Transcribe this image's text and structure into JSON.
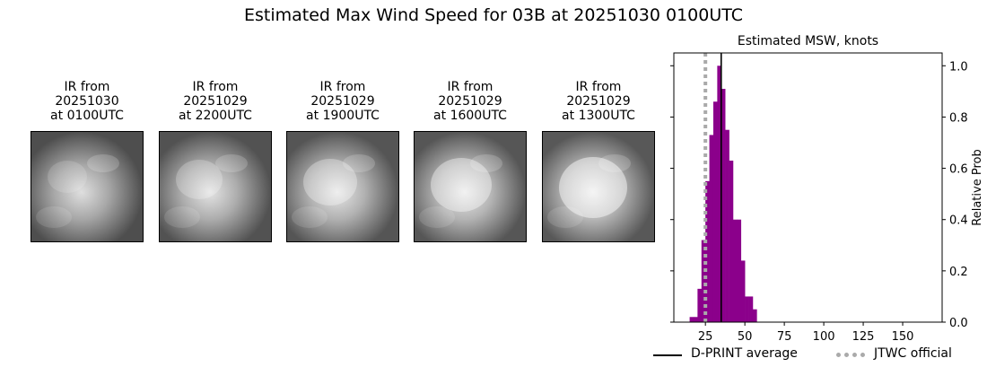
{
  "figure": {
    "title": "Estimated Max Wind Speed for 03B at 20251030 0100UTC"
  },
  "panels": [
    {
      "line1": "IR from",
      "line2": "20251030",
      "line3": "at 0100UTC",
      "brightness": 0.45
    },
    {
      "line1": "IR from",
      "line2": "20251029",
      "line3": "at 2200UTC",
      "brightness": 0.55
    },
    {
      "line1": "IR from",
      "line2": "20251029",
      "line3": "at 1900UTC",
      "brightness": 0.62
    },
    {
      "line1": "IR from",
      "line2": "20251029",
      "line3": "at 1600UTC",
      "brightness": 0.66
    },
    {
      "line1": "IR from",
      "line2": "20251029",
      "line3": "at 1300UTC",
      "brightness": 0.7
    }
  ],
  "chart_data": {
    "type": "bar",
    "title": "Estimated MSW, knots",
    "xlabel": "",
    "ylabel": "Relative Prob",
    "xlim": [
      5,
      175
    ],
    "ylim": [
      0,
      1.05
    ],
    "xticks": [
      25,
      50,
      75,
      100,
      125,
      150
    ],
    "yticks": [
      0.0,
      0.2,
      0.4,
      0.6,
      0.8,
      1.0
    ],
    "ytick_labels": [
      "0.0",
      "0.2",
      "0.4",
      "0.6",
      "0.8",
      "1.0"
    ],
    "grid": false,
    "legend_position": "below",
    "bar_color": "#8b008b",
    "bin_width": 2.5,
    "bins": [
      {
        "x": 15.0,
        "value": 0.02
      },
      {
        "x": 17.5,
        "value": 0.02
      },
      {
        "x": 20.0,
        "value": 0.13
      },
      {
        "x": 22.5,
        "value": 0.32
      },
      {
        "x": 25.0,
        "value": 0.55
      },
      {
        "x": 27.5,
        "value": 0.73
      },
      {
        "x": 30.0,
        "value": 0.86
      },
      {
        "x": 32.5,
        "value": 1.0
      },
      {
        "x": 35.0,
        "value": 0.91
      },
      {
        "x": 37.5,
        "value": 0.75
      },
      {
        "x": 40.0,
        "value": 0.63
      },
      {
        "x": 42.5,
        "value": 0.4
      },
      {
        "x": 45.0,
        "value": 0.4
      },
      {
        "x": 47.5,
        "value": 0.24
      },
      {
        "x": 50.0,
        "value": 0.1
      },
      {
        "x": 52.5,
        "value": 0.1
      },
      {
        "x": 55.0,
        "value": 0.05
      }
    ],
    "dprint_average": 35,
    "jtwc_official": 25,
    "series": [
      {
        "name": "D-PRINT average",
        "color": "#000000",
        "style": "solid"
      },
      {
        "name": "JTWC official",
        "color": "#aaaaaa",
        "style": "dotted"
      }
    ]
  }
}
